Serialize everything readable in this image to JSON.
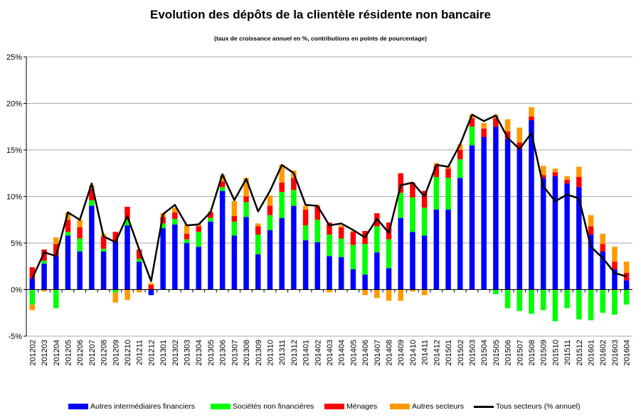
{
  "chart_data": {
    "type": "bar",
    "stacked": true,
    "title": "Evolution des dépôts de la clientèle résidente non bancaire",
    "subtitle": "(taux de croissance annuel en %, contributions en points de pourcentage)",
    "xlabel": "",
    "ylabel": "",
    "ylim": [
      -5,
      25
    ],
    "y_ticks": [
      "-5%",
      "0%",
      "5%",
      "10%",
      "15%",
      "20%",
      "25%"
    ],
    "y_tick_values": [
      -5,
      0,
      5,
      10,
      15,
      20,
      25
    ],
    "grid": true,
    "legend_position": "bottom",
    "categories": [
      "201202",
      "201203",
      "201204",
      "201205",
      "201206",
      "201207",
      "201208",
      "201209",
      "201210",
      "201211",
      "201212",
      "201301",
      "201302",
      "201303",
      "201304",
      "201305",
      "201306",
      "201307",
      "201308",
      "201309",
      "201310",
      "201311",
      "201312",
      "201401",
      "201402",
      "201403",
      "201404",
      "201405",
      "201406",
      "201407",
      "201408",
      "201409",
      "201410",
      "201411",
      "201412",
      "201501",
      "201502",
      "201503",
      "201504",
      "201505",
      "201506",
      "201507",
      "201508",
      "201509",
      "201510",
      "201511",
      "201512",
      "201601",
      "201602",
      "201603",
      "201604"
    ],
    "series": [
      {
        "name": "Autres intermédiaires financiers",
        "type": "bar",
        "color": "#0000ff",
        "values": [
          1.2,
          2.8,
          3.6,
          5.8,
          4.1,
          9.0,
          4.1,
          5.2,
          6.9,
          3.0,
          -0.6,
          6.6,
          7.0,
          5.0,
          4.6,
          7.3,
          10.6,
          5.8,
          7.8,
          3.8,
          6.4,
          7.7,
          9.0,
          5.3,
          5.1,
          3.6,
          3.5,
          2.2,
          1.6,
          4.0,
          2.3,
          7.7,
          6.2,
          5.8,
          8.6,
          8.6,
          12.0,
          15.5,
          16.4,
          17.5,
          16.2,
          15.1,
          18.2,
          12.0,
          12.2,
          11.4,
          11.0,
          5.9,
          4.1,
          2.2,
          1.0
        ]
      },
      {
        "name": "Sociétés non financières",
        "type": "bar",
        "color": "#00ff00",
        "values": [
          -1.6,
          0.3,
          -2.0,
          0.4,
          1.4,
          0.6,
          0.3,
          -0.3,
          0.6,
          0.3,
          0.0,
          0.5,
          0.6,
          0.4,
          1.6,
          0.4,
          0.4,
          1.5,
          1.6,
          2.1,
          1.6,
          2.8,
          1.7,
          1.6,
          2.4,
          2.3,
          2.0,
          2.6,
          3.3,
          2.8,
          3.1,
          2.7,
          3.7,
          3.0,
          3.5,
          3.4,
          2.0,
          2.0,
          0.0,
          -0.5,
          -2.0,
          -2.3,
          -2.6,
          -2.2,
          -3.4,
          -2.0,
          -3.2,
          -3.3,
          -2.5,
          -2.7,
          -1.6
        ]
      },
      {
        "name": "Ménages",
        "type": "bar",
        "color": "#ff0000",
        "values": [
          1.2,
          1.2,
          1.3,
          1.3,
          1.2,
          1.2,
          1.3,
          1.0,
          1.4,
          1.0,
          0.5,
          0.7,
          0.7,
          0.6,
          0.6,
          0.6,
          0.6,
          0.6,
          0.6,
          0.9,
          1.0,
          1.0,
          1.3,
          1.7,
          1.4,
          1.3,
          1.2,
          1.4,
          1.4,
          1.4,
          1.8,
          2.1,
          1.6,
          1.8,
          1.2,
          1.0,
          1.0,
          0.9,
          0.9,
          0.9,
          0.8,
          0.7,
          0.4,
          0.3,
          0.4,
          0.4,
          1.1,
          0.9,
          0.8,
          0.8,
          0.8
        ]
      },
      {
        "name": "Autres secteurs",
        "type": "bar",
        "color": "#ff9900",
        "values": [
          -0.6,
          -0.2,
          0.7,
          0.8,
          0.8,
          0.4,
          0.3,
          -1.1,
          -1.1,
          -0.3,
          0.2,
          0.4,
          0.5,
          1.0,
          0.3,
          0.1,
          0.7,
          1.6,
          2.0,
          0.3,
          1.1,
          1.9,
          0.8,
          0.4,
          0.2,
          -0.3,
          0.2,
          0.1,
          -0.6,
          -0.9,
          -1.2,
          -1.2,
          -0.2,
          -0.6,
          0.3,
          0.3,
          0.6,
          0.4,
          0.6,
          0.4,
          1.3,
          1.6,
          1.0,
          1.0,
          0.4,
          0.4,
          1.1,
          1.2,
          1.1,
          1.6,
          1.2
        ]
      },
      {
        "name": "Tous secteurs (% annuel)",
        "type": "line",
        "color": "#000000",
        "values": [
          1.2,
          4.0,
          3.6,
          8.3,
          7.5,
          11.4,
          5.7,
          5.1,
          7.9,
          4.3,
          0.9,
          8.1,
          9.1,
          6.9,
          7.0,
          8.3,
          12.4,
          9.6,
          11.9,
          8.4,
          10.6,
          13.4,
          12.5,
          9.1,
          9.0,
          6.9,
          7.1,
          6.4,
          5.6,
          7.6,
          6.1,
          11.2,
          11.5,
          10.0,
          13.4,
          13.2,
          15.6,
          18.8,
          18.1,
          18.7,
          16.3,
          15.1,
          16.8,
          11.1,
          9.5,
          10.2,
          9.8,
          4.6,
          3.4,
          1.8,
          1.4
        ]
      }
    ]
  }
}
